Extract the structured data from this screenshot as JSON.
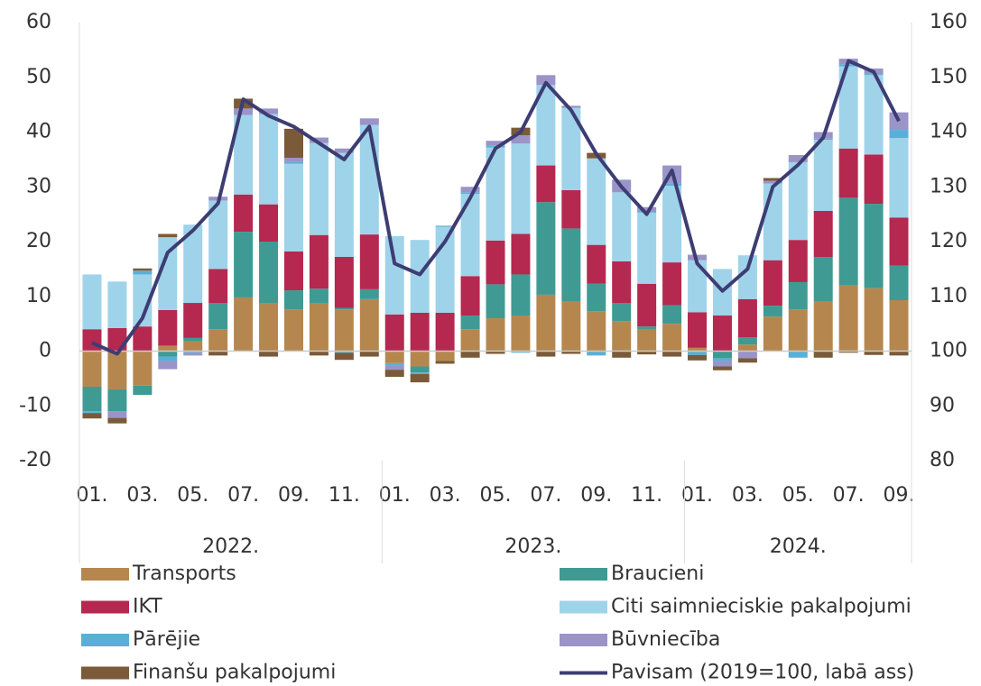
{
  "chart_data": {
    "type": "bar",
    "stacked": true,
    "categories": [
      "01.",
      null,
      "03.",
      null,
      "05.",
      null,
      "07.",
      null,
      "09.",
      null,
      "11.",
      null,
      "01.",
      null,
      "03.",
      null,
      "05.",
      null,
      "07.",
      null,
      "09.",
      null,
      "11.",
      null,
      "01.",
      null,
      "03.",
      null,
      "05.",
      null,
      "07.",
      null,
      "09."
    ],
    "years": [
      "2022.",
      "2023.",
      "2024."
    ],
    "ylim": [
      -20,
      60
    ],
    "yticks": [
      -20,
      -10,
      0,
      10,
      20,
      30,
      40,
      50,
      60
    ],
    "y2lim": [
      80,
      160
    ],
    "y2ticks": [
      80,
      90,
      100,
      110,
      120,
      130,
      140,
      150,
      160
    ],
    "series": [
      {
        "name": "Transports",
        "color": "#b5874f",
        "values": [
          -6.5,
          -7,
          -6.3,
          1,
          1.8,
          4,
          9.8,
          8.8,
          7.6,
          8.7,
          7.6,
          9.5,
          -2.2,
          -2.8,
          -1.8,
          4,
          6,
          6.5,
          10.3,
          9,
          7.3,
          5.5,
          3.9,
          5,
          0.6,
          0,
          1.2,
          6.3,
          7.6,
          9,
          12,
          11.5,
          9.3
        ]
      },
      {
        "name": "Braucieni",
        "color": "#3f9a94",
        "values": [
          -4.5,
          -4,
          -1.7,
          -1,
          0.6,
          4.8,
          12,
          11.2,
          3.5,
          2.7,
          0.3,
          1.8,
          0,
          -1.1,
          0,
          2.5,
          6.2,
          7.5,
          16.9,
          13.4,
          5,
          3.3,
          0.6,
          3.4,
          0,
          -1.3,
          1.3,
          2,
          5,
          8.2,
          16,
          15.4,
          6.3
        ]
      },
      {
        "name": "IKT",
        "color": "#b5284f",
        "values": [
          4,
          4.2,
          4.5,
          6.5,
          6.4,
          6.2,
          6.8,
          6.8,
          7.1,
          9.8,
          9.3,
          10,
          6.7,
          7,
          7,
          7.2,
          8,
          7.4,
          6.7,
          7,
          7.1,
          7.6,
          7.8,
          7.8,
          6.5,
          6.5,
          7,
          8.3,
          7.7,
          8.4,
          9,
          9,
          8.8
        ]
      },
      {
        "name": "Citi saimnieciskie pakalpojumi",
        "color": "#9fd3ea",
        "values": [
          10,
          8.5,
          9.5,
          13.3,
          14.3,
          12.5,
          14.5,
          16.5,
          16,
          16.8,
          19,
          20,
          14.3,
          13.3,
          15.7,
          15,
          17,
          16.5,
          14.7,
          15,
          15.8,
          12.6,
          13,
          14,
          9.5,
          8.5,
          8,
          14,
          14.2,
          13,
          15,
          14.5,
          14.5
        ]
      },
      {
        "name": "Pārējie",
        "color": "#5aafd8",
        "values": [
          -0.3,
          0,
          0.7,
          -0.8,
          -0.3,
          0,
          0,
          0,
          0.3,
          0,
          -0.3,
          0,
          -0.5,
          -0.3,
          0.2,
          0.3,
          0.3,
          -0.3,
          0,
          0,
          -0.8,
          0,
          0.3,
          0.4,
          -0.7,
          -0.5,
          0,
          0,
          -1.2,
          0.2,
          0.4,
          0.2,
          1.5
        ]
      },
      {
        "name": "Būvniecība",
        "color": "#9a94c8",
        "values": [
          0,
          -1.2,
          0,
          -1.5,
          -0.5,
          0.7,
          1.2,
          1,
          0.8,
          1,
          0.8,
          1.2,
          -0.7,
          0,
          0,
          1,
          0.9,
          1.5,
          1.8,
          0.4,
          0,
          2.3,
          0.7,
          3.3,
          1,
          -1,
          -1.3,
          0.5,
          1.3,
          1.2,
          1,
          1,
          3.2
        ]
      },
      {
        "name": "Finanšu pakalpojumi",
        "color": "#7a5a38",
        "values": [
          -1,
          -1,
          0.4,
          0.6,
          0,
          -0.8,
          1.8,
          -1,
          5.3,
          -0.8,
          -1.3,
          -1,
          -1.3,
          -1.5,
          -0.5,
          -1.2,
          -0.5,
          1.4,
          -1,
          -0.5,
          1,
          -1.2,
          -0.6,
          -1,
          -1,
          -0.7,
          -0.8,
          0.5,
          0,
          -1.2,
          -0.3,
          -0.7,
          -0.8
        ]
      },
      {
        "name": "Pavisam (2019=100, labā ass)",
        "color": "#3d3d74",
        "kind": "line",
        "axis": "y2",
        "values": [
          101.5,
          99.5,
          106,
          118,
          122,
          127,
          146,
          143,
          141,
          138,
          135,
          141,
          116,
          114,
          120,
          128,
          137,
          140,
          149,
          144,
          136,
          130,
          125,
          133,
          116,
          111,
          115,
          130,
          134,
          139,
          153,
          151,
          142
        ]
      }
    ]
  }
}
